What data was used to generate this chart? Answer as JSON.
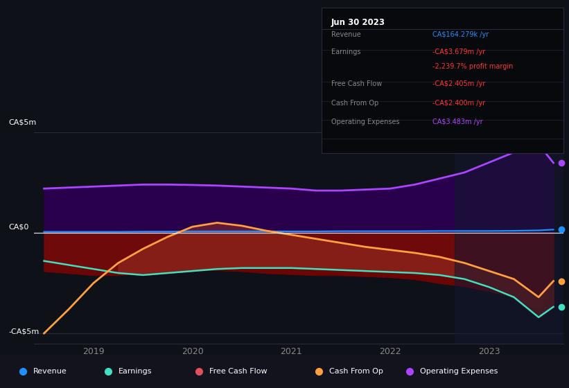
{
  "bg_color": "#0e1117",
  "plot_bg": "#0e1117",
  "ylabel_top": "CA$5m",
  "ylabel_bottom": "-CA$5m",
  "ylabel_mid": "CA$0",
  "ylim": [
    -5.5,
    5.5
  ],
  "xlim": [
    2018.4,
    2023.75
  ],
  "x_ticks": [
    2019,
    2020,
    2021,
    2022,
    2023
  ],
  "tooltip_title": "Jun 30 2023",
  "tooltip_rows": [
    {
      "label": "Revenue",
      "value": "CA$164.279k /yr",
      "value_color": "#1e90ff"
    },
    {
      "label": "Earnings",
      "value": "-CA$3.679m /yr",
      "value_color": "#ff3333"
    },
    {
      "label": "",
      "value": "-2,239.7% profit margin",
      "value_color": "#ff3333"
    },
    {
      "label": "Free Cash Flow",
      "value": "-CA$2.405m /yr",
      "value_color": "#ff3333"
    },
    {
      "label": "Cash From Op",
      "value": "-CA$2.400m /yr",
      "value_color": "#ff3333"
    },
    {
      "label": "Operating Expenses",
      "value": "CA$3.483m /yr",
      "value_color": "#b044ff"
    }
  ],
  "series": {
    "x": [
      2018.5,
      2018.75,
      2019.0,
      2019.25,
      2019.5,
      2019.75,
      2020.0,
      2020.25,
      2020.5,
      2020.75,
      2021.0,
      2021.25,
      2021.5,
      2021.75,
      2022.0,
      2022.25,
      2022.5,
      2022.75,
      2023.0,
      2023.25,
      2023.5,
      2023.65
    ],
    "revenue": [
      0.05,
      0.05,
      0.05,
      0.05,
      0.06,
      0.06,
      0.07,
      0.07,
      0.07,
      0.07,
      0.07,
      0.07,
      0.08,
      0.08,
      0.08,
      0.08,
      0.09,
      0.09,
      0.09,
      0.1,
      0.12,
      0.16
    ],
    "earnings": [
      -1.4,
      -1.6,
      -1.8,
      -2.0,
      -2.1,
      -2.0,
      -1.9,
      -1.8,
      -1.75,
      -1.75,
      -1.75,
      -1.8,
      -1.85,
      -1.9,
      -1.95,
      -2.0,
      -2.1,
      -2.3,
      -2.7,
      -3.2,
      -4.2,
      -3.68
    ],
    "fcf": [
      -1.9,
      -2.0,
      -2.1,
      -2.1,
      -2.0,
      -1.9,
      -1.85,
      -1.85,
      -1.9,
      -2.0,
      -2.05,
      -2.1,
      -2.1,
      -2.15,
      -2.2,
      -2.3,
      -2.5,
      -2.65,
      -2.9,
      -3.2,
      -3.8,
      -2.405
    ],
    "cash_op": [
      -5.0,
      -3.8,
      -2.5,
      -1.5,
      -0.8,
      -0.2,
      0.3,
      0.5,
      0.35,
      0.1,
      -0.1,
      -0.3,
      -0.5,
      -0.7,
      -0.85,
      -1.0,
      -1.2,
      -1.5,
      -1.9,
      -2.3,
      -3.2,
      -2.4
    ],
    "op_expenses": [
      2.2,
      2.25,
      2.3,
      2.35,
      2.4,
      2.4,
      2.38,
      2.35,
      2.3,
      2.25,
      2.2,
      2.1,
      2.1,
      2.15,
      2.2,
      2.4,
      2.7,
      3.0,
      3.5,
      4.0,
      4.4,
      3.48
    ]
  },
  "colors": {
    "revenue": "#1e90ff",
    "earnings": "#40e0c0",
    "fcf_fill": "#8b1010",
    "fcf_line": "#dd4444",
    "cash_op": "#ffa040",
    "op_fill": "#3a0060",
    "op_line": "#aa44ff",
    "highlight_bg": "#141830"
  },
  "legend": [
    {
      "label": "Revenue",
      "color": "#1e90ff"
    },
    {
      "label": "Earnings",
      "color": "#40e0c0"
    },
    {
      "label": "Free Cash Flow",
      "color": "#e05060"
    },
    {
      "label": "Cash From Op",
      "color": "#ffa040"
    },
    {
      "label": "Operating Expenses",
      "color": "#aa44ff"
    }
  ]
}
